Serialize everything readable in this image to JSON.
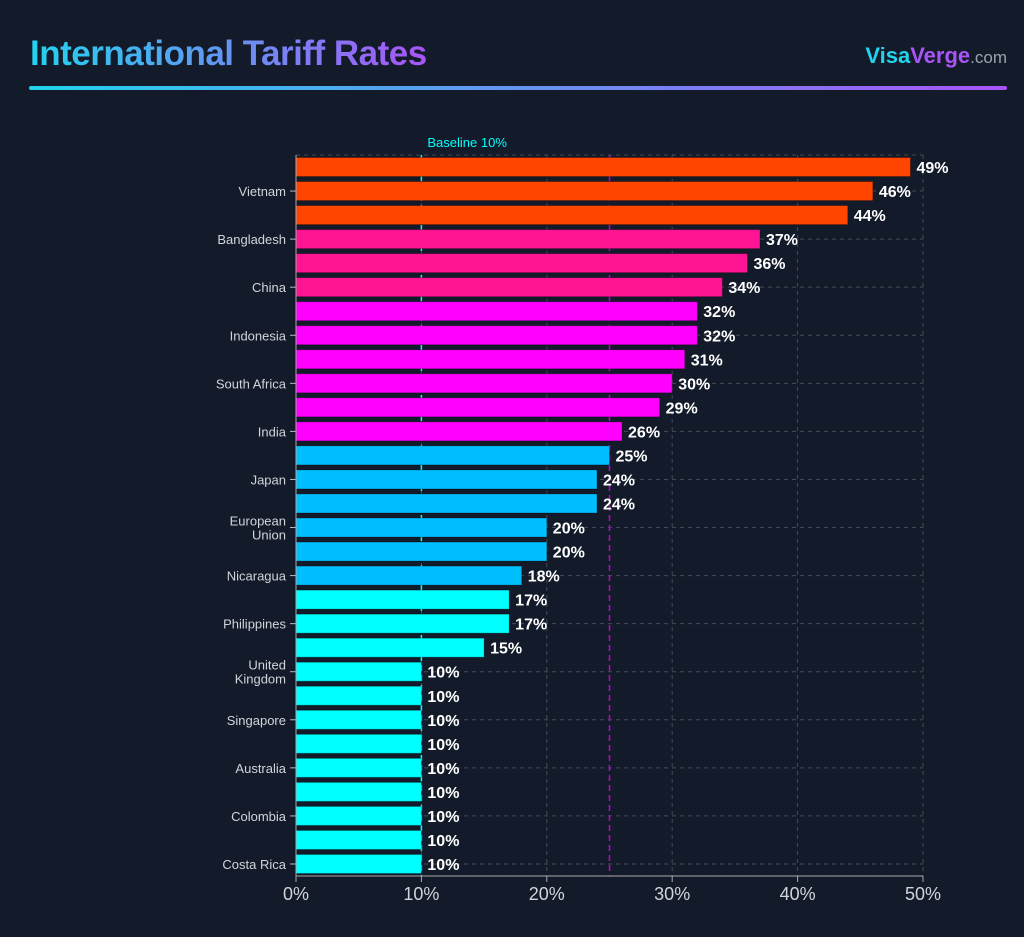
{
  "header": {
    "title": "International Tariff Rates",
    "brand_part1": "Visa",
    "brand_part2": "Verge",
    "brand_part3": ".com"
  },
  "chart_data": {
    "type": "bar",
    "orientation": "horizontal",
    "title": "International Tariff Rates",
    "xlabel": "",
    "ylabel": "",
    "xlim": [
      0,
      50
    ],
    "x_ticks": [
      "0%",
      "10%",
      "20%",
      "30%",
      "40%",
      "50%"
    ],
    "grid": true,
    "values": [
      49,
      46,
      44,
      37,
      36,
      34,
      32,
      32,
      31,
      30,
      29,
      26,
      25,
      24,
      24,
      20,
      20,
      18,
      17,
      17,
      15,
      10,
      10,
      10,
      10,
      10,
      10,
      10,
      10,
      10
    ],
    "categories": [
      "",
      "Vietnam",
      "",
      "Bangladesh",
      "",
      "China",
      "",
      "Indonesia",
      "",
      "South Africa",
      "",
      "India",
      "",
      "Japan",
      "",
      "European Union",
      "",
      "Nicaragua",
      "",
      "Philippines",
      "",
      "United Kingdom",
      "",
      "Singapore",
      "",
      "Australia",
      "",
      "Colombia",
      "",
      "Costa Rica"
    ],
    "value_labels": [
      "49%",
      "46%",
      "44%",
      "37%",
      "36%",
      "34%",
      "32%",
      "32%",
      "31%",
      "30%",
      "29%",
      "26%",
      "25%",
      "24%",
      "24%",
      "20%",
      "20%",
      "18%",
      "17%",
      "17%",
      "15%",
      "10%",
      "10%",
      "10%",
      "10%",
      "10%",
      "10%",
      "10%",
      "10%",
      "10%"
    ],
    "bar_colors": [
      "#ff4500",
      "#ff4500",
      "#ff4500",
      "#ff1493",
      "#ff1493",
      "#ff1493",
      "#ff00ff",
      "#ff00ff",
      "#ff00ff",
      "#ff00ff",
      "#ff00ff",
      "#ff00ff",
      "#00bfff",
      "#00bfff",
      "#00bfff",
      "#00bfff",
      "#00bfff",
      "#00bfff",
      "#00ffff",
      "#00ffff",
      "#00ffff",
      "#00ffff",
      "#00ffff",
      "#00ffff",
      "#00ffff",
      "#00ffff",
      "#00ffff",
      "#00ffff",
      "#00ffff",
      "#00ffff"
    ],
    "reference_lines": [
      {
        "value": 10,
        "label": "Baseline 10%",
        "color": "#00ffff"
      },
      {
        "value": 25,
        "label": "",
        "color": "#c400c4"
      }
    ]
  }
}
